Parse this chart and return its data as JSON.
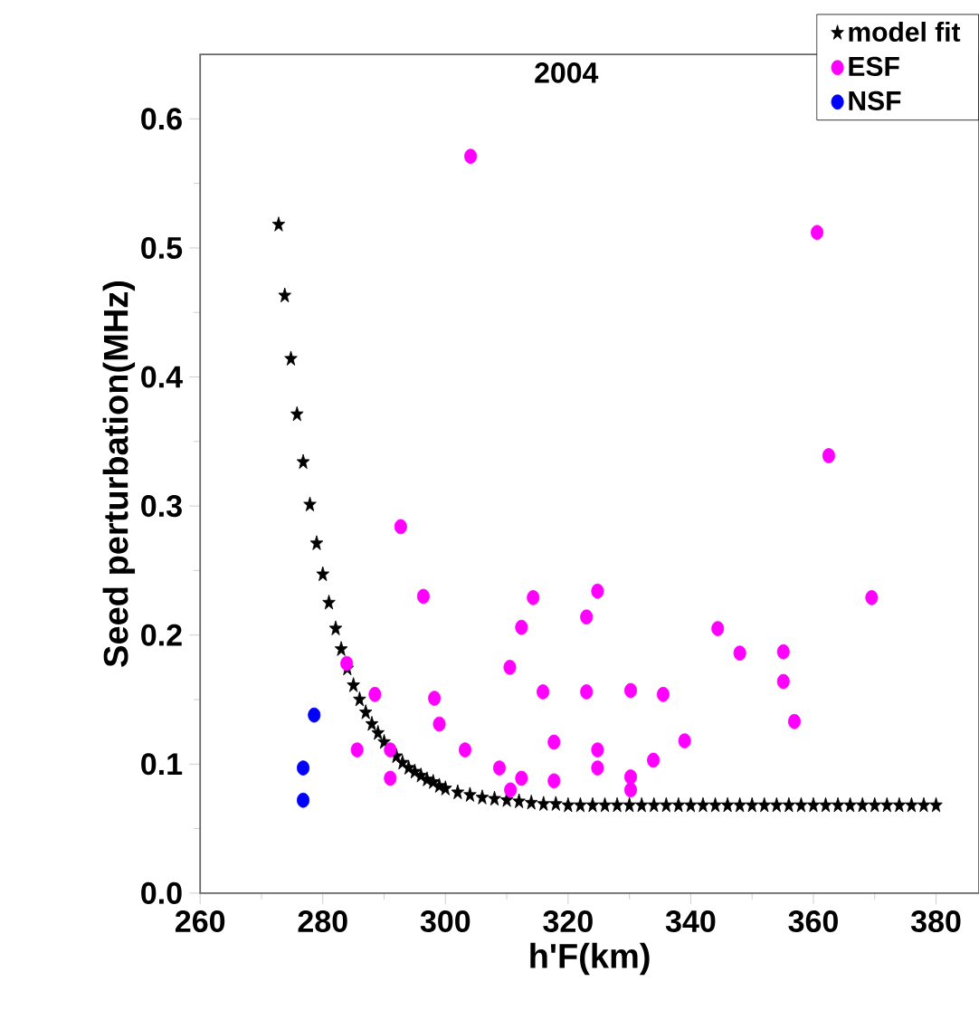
{
  "chart_data": {
    "type": "scatter",
    "title": "2004",
    "xlabel": "h'F(km)",
    "ylabel": "Seed perturbation(MHz)",
    "xlim": [
      260,
      387
    ],
    "ylim": [
      0,
      0.65
    ],
    "xticks": [
      260,
      280,
      300,
      320,
      340,
      360,
      380
    ],
    "yticks": [
      {
        "value": 0,
        "label": "0.0"
      },
      {
        "value": 0.1,
        "label": "0.1"
      },
      {
        "value": 0.2,
        "label": "0.2"
      },
      {
        "value": 0.3,
        "label": "0.3"
      },
      {
        "value": 0.4,
        "label": "0.4"
      },
      {
        "value": 0.5,
        "label": "0.5"
      },
      {
        "value": 0.6,
        "label": "0.6"
      }
    ],
    "legend": "top right",
    "grid": false,
    "series": [
      {
        "name": "model fit",
        "color": "#000000",
        "marker": "star",
        "x": [
          272.8,
          273.8,
          274.8,
          275.8,
          276.8,
          277.9,
          279.0,
          280.0,
          281.0,
          282.1,
          283.0,
          284,
          285,
          286,
          287,
          288,
          289,
          290,
          291,
          292,
          293,
          294,
          295,
          296,
          297,
          298,
          299,
          300,
          302,
          304,
          306,
          308,
          310,
          312,
          314,
          316,
          318,
          320,
          322,
          324,
          326,
          328,
          330,
          332,
          334,
          336,
          338,
          340,
          342,
          344,
          346,
          348,
          350,
          352,
          354,
          356,
          358,
          360,
          362,
          364,
          366,
          368,
          370,
          372,
          374,
          376,
          378,
          380
        ],
        "values": [
          0.518,
          0.463,
          0.414,
          0.371,
          0.334,
          0.301,
          0.271,
          0.247,
          0.225,
          0.205,
          0.189,
          0.174,
          0.161,
          0.15,
          0.14,
          0.131,
          0.124,
          0.117,
          null,
          0.106,
          0.101,
          0.097,
          0.094,
          0.091,
          0.088,
          0.086,
          0.083,
          0.081,
          0.078,
          0.076,
          0.074,
          0.073,
          0.072,
          0.071,
          0.07,
          0.069,
          0.069,
          0.068,
          0.068,
          0.068,
          0.068,
          0.068,
          0.068,
          0.068,
          0.068,
          0.068,
          0.068,
          0.068,
          0.068,
          0.068,
          0.068,
          0.068,
          0.068,
          0.068,
          0.068,
          0.068,
          0.068,
          0.068,
          0.068,
          0.068,
          0.068,
          0.068,
          0.068,
          0.068,
          0.068,
          0.068,
          0.068,
          0.068
        ]
      },
      {
        "name": "ESF",
        "color": "#ff00ff",
        "marker": "circle",
        "x": [
          304.1,
          360.6,
          362.5,
          292.7,
          296.4,
          314.3,
          312.4,
          310.5,
          283.9,
          288.5,
          298.2,
          299.0,
          285.6,
          291.0,
          303.2,
          308.8,
          312.4,
          310.6,
          291.0,
          324.8,
          323.0,
          315.9,
          323.0,
          330.2,
          335.5,
          344.4,
          348.0,
          355.1,
          355.1,
          356.9,
          369.5,
          339.0,
          317.7,
          324.8,
          324.8,
          333.9,
          317.7,
          330.2,
          330.2
        ],
        "values": [
          0.571,
          0.512,
          0.339,
          0.284,
          0.23,
          0.229,
          0.206,
          0.175,
          0.178,
          0.154,
          0.151,
          0.131,
          0.111,
          0.111,
          0.111,
          0.097,
          0.089,
          0.08,
          0.089,
          0.234,
          0.214,
          0.156,
          0.156,
          0.157,
          0.154,
          0.205,
          0.186,
          0.187,
          0.164,
          0.133,
          0.229,
          0.118,
          0.117,
          0.111,
          0.097,
          0.103,
          0.087,
          0.09,
          0.08
        ]
      },
      {
        "name": "NSF",
        "color": "#0000ff",
        "marker": "circle",
        "x": [
          278.6,
          276.8,
          276.8
        ],
        "values": [
          0.138,
          0.097,
          0.072
        ]
      }
    ]
  }
}
